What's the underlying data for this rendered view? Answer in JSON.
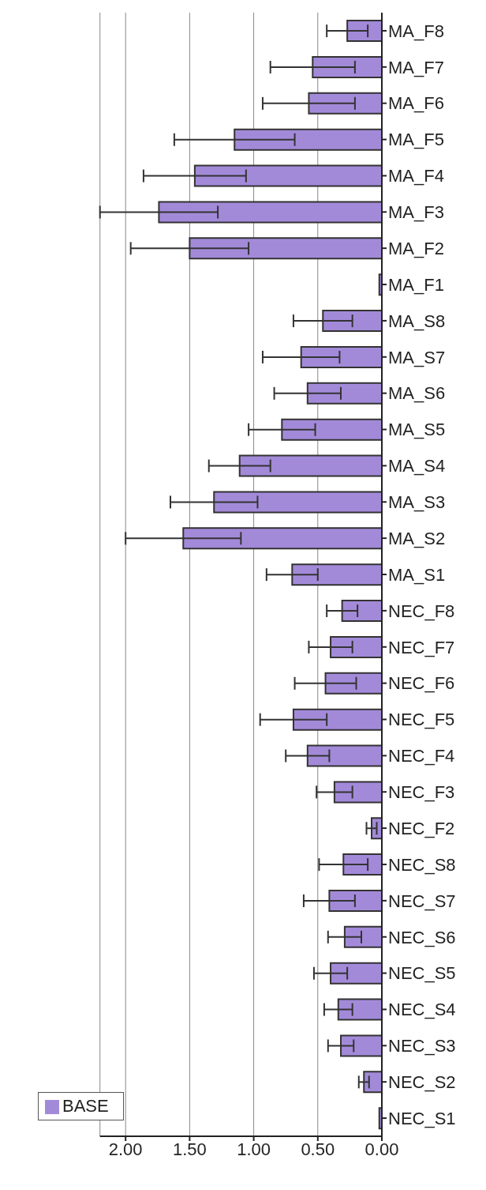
{
  "chart_data": {
    "type": "bar",
    "orientation": "horizontal",
    "categories": [
      "MA_F8",
      "MA_F7",
      "MA_F6",
      "MA_F5",
      "MA_F4",
      "MA_F3",
      "MA_F2",
      "MA_F1",
      "MA_S8",
      "MA_S7",
      "MA_S6",
      "MA_S5",
      "MA_S4",
      "MA_S3",
      "MA_S2",
      "MA_S1",
      "NEC_F8",
      "NEC_F7",
      "NEC_F6",
      "NEC_F5",
      "NEC_F4",
      "NEC_F3",
      "NEC_F2",
      "NEC_S8",
      "NEC_S7",
      "NEC_S6",
      "NEC_S5",
      "NEC_S4",
      "NEC_S3",
      "NEC_S2",
      "NEC_S1"
    ],
    "series": [
      {
        "name": "BASE",
        "color": "#a38ad9",
        "values": [
          0.27,
          0.54,
          0.57,
          1.15,
          1.46,
          1.74,
          1.5,
          0.02,
          0.46,
          0.63,
          0.58,
          0.78,
          1.11,
          1.31,
          1.55,
          0.7,
          0.31,
          0.4,
          0.44,
          0.69,
          0.58,
          0.37,
          0.08,
          0.3,
          0.41,
          0.29,
          0.4,
          0.34,
          0.32,
          0.14,
          0.02
        ],
        "errors": [
          0.16,
          0.33,
          0.36,
          0.47,
          0.4,
          0.46,
          0.46,
          null,
          0.23,
          0.3,
          0.26,
          0.26,
          0.24,
          0.34,
          0.45,
          0.2,
          0.12,
          0.17,
          0.24,
          0.26,
          0.17,
          0.14,
          0.04,
          0.19,
          0.2,
          0.13,
          0.13,
          0.11,
          0.1,
          0.04,
          null
        ]
      }
    ],
    "xlim": [
      2.2,
      0
    ],
    "xticks": [
      {
        "value": 2,
        "label": "2.00"
      },
      {
        "value": 1.5,
        "label": "1.50"
      },
      {
        "value": 1,
        "label": "1.00"
      },
      {
        "value": 0.5,
        "label": "0.50"
      },
      {
        "value": 0,
        "label": "0.00"
      }
    ],
    "grid": "x",
    "legend": "bottom left"
  }
}
